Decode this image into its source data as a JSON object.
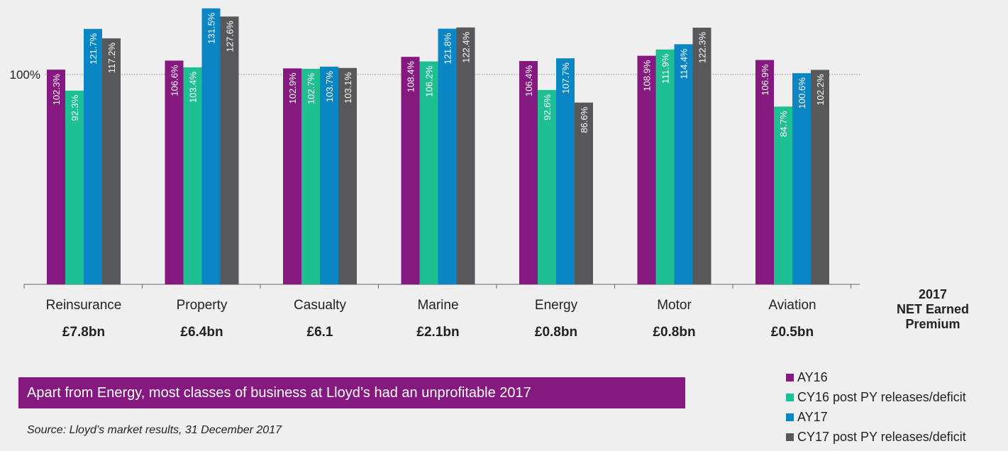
{
  "chart_data": {
    "type": "bar",
    "categories": [
      "Reinsurance",
      "Property",
      "Casualty",
      "Marine",
      "Energy",
      "Motor",
      "Aviation"
    ],
    "premiums": [
      "£7.8bn",
      "£6.4bn",
      "£6.1",
      "£2.1bn",
      "£0.8bn",
      "£0.8bn",
      "£0.5bn"
    ],
    "premium_heading": [
      "2017",
      "NET Earned",
      "Premium"
    ],
    "reference_line": {
      "value": 100,
      "label": "100%"
    },
    "series": [
      {
        "name": "AY16",
        "color": "#85197f",
        "values": [
          102.3,
          106.6,
          102.9,
          108.4,
          106.4,
          108.9,
          106.9
        ],
        "labels": [
          "102.3%",
          "106.6%",
          "102.9%",
          "108.4%",
          "106.4%",
          "108.9%",
          "106.9%"
        ]
      },
      {
        "name": "CY16 post PY releases/deficit",
        "color": "#1dbf93",
        "values": [
          92.3,
          103.4,
          102.7,
          106.2,
          92.6,
          111.9,
          84.7
        ],
        "labels": [
          "92.3%",
          "103.4%",
          "102.7%",
          "106.2%",
          "92.6%",
          "111.9%",
          "84.7%"
        ]
      },
      {
        "name": "AY17",
        "color": "#0a86c4",
        "values": [
          121.7,
          131.5,
          103.7,
          121.8,
          107.7,
          114.4,
          100.6
        ],
        "labels": [
          "121.7%",
          "131.5%",
          "103.7%",
          "121.8%",
          "107.7%",
          "114.4%",
          "100.6%"
        ]
      },
      {
        "name": "CY17 post PY releases/deficit",
        "color": "#58585a",
        "values": [
          117.2,
          127.6,
          103.1,
          122.4,
          86.6,
          122.3,
          102.2
        ],
        "labels": [
          "117.2%",
          "127.6%",
          "103.1%",
          "122.4%",
          "86.6%",
          "122.3%",
          "102.2%"
        ]
      }
    ]
  },
  "headline": "Apart from Energy, most classes of business at Lloyd’s had an unprofitable 2017",
  "source": "Source: Lloyd’s market results, 31 December 2017"
}
